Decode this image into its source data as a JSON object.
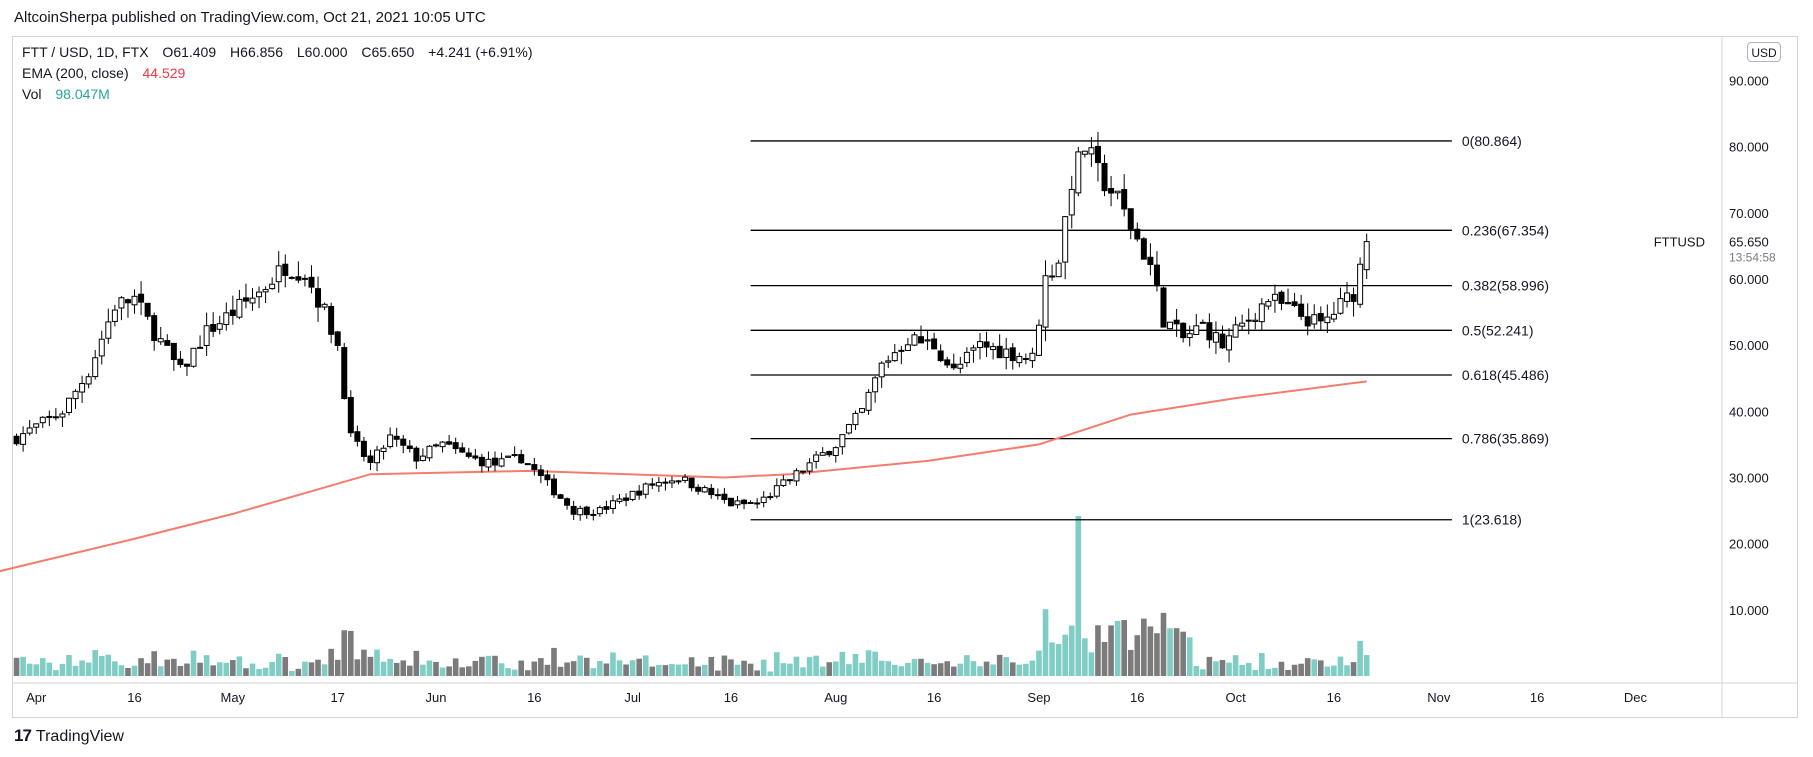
{
  "header": {
    "publisher_line": "AltcoinSherpa published on TradingView.com, Oct 21, 2021 10:05 UTC"
  },
  "legend": {
    "symbol": "FTT / USD, 1D, FTX",
    "open_label": "O",
    "open": "61.409",
    "high_label": "H",
    "high": "66.856",
    "low_label": "L",
    "low": "60.000",
    "close_label": "C",
    "close": "65.650",
    "change": "+4.241 (+6.91%)",
    "ema_label": "EMA (200, close)",
    "ema_value": "44.529",
    "vol_label": "Vol",
    "vol_value": "98.047M"
  },
  "currency_button": "USD",
  "footer": {
    "brand": "TradingView",
    "brand_mark": "17"
  },
  "colors": {
    "up_body": "#ffffff",
    "down_body": "#000000",
    "wick": "#000000",
    "ema": "#f47c6c",
    "vol_up": "#7fcdc5",
    "vol_down": "#7b7b7b",
    "grid_border": "#d1d4dc",
    "fib_line": "#000000"
  },
  "chart_data": {
    "type": "candlestick",
    "symbol_label": "FTTUSD",
    "last_price": "65.650",
    "countdown": "13:54:58",
    "y_axis": {
      "ticks": [
        "90.000",
        "80.000",
        "70.000",
        "60.000",
        "50.000",
        "40.000",
        "30.000",
        "20.000",
        "10.000"
      ],
      "ylim": [
        0,
        97
      ]
    },
    "x_axis": {
      "ticks": [
        "Apr",
        "16",
        "May",
        "17",
        "Jun",
        "16",
        "Jul",
        "16",
        "Aug",
        "16",
        "Sep",
        "16",
        "Oct",
        "16",
        "Nov",
        "16",
        "Dec"
      ]
    },
    "fib_levels": [
      {
        "label": "0(80.864)",
        "value": 80.864
      },
      {
        "label": "0.236(67.354)",
        "value": 67.354
      },
      {
        "label": "0.382(58.996)",
        "value": 58.996
      },
      {
        "label": "0.5(52.241)",
        "value": 52.241
      },
      {
        "label": "0.618(45.486)",
        "value": 45.486
      },
      {
        "label": "0.786(35.869)",
        "value": 35.869
      },
      {
        "label": "1(23.618)",
        "value": 23.618
      }
    ],
    "price_path": [
      [
        "2021-03-29",
        36
      ],
      [
        "2021-04-05",
        40
      ],
      [
        "2021-04-09",
        46
      ],
      [
        "2021-04-13",
        56
      ],
      [
        "2021-04-16",
        57
      ],
      [
        "2021-04-19",
        52
      ],
      [
        "2021-04-23",
        46
      ],
      [
        "2021-04-27",
        52
      ],
      [
        "2021-05-01",
        55
      ],
      [
        "2021-05-05",
        58
      ],
      [
        "2021-05-09",
        62
      ],
      [
        "2021-05-12",
        61
      ],
      [
        "2021-05-15",
        55
      ],
      [
        "2021-05-17",
        50
      ],
      [
        "2021-05-19",
        36
      ],
      [
        "2021-05-22",
        32
      ],
      [
        "2021-05-25",
        36
      ],
      [
        "2021-05-29",
        33
      ],
      [
        "2021-06-02",
        35
      ],
      [
        "2021-06-06",
        33
      ],
      [
        "2021-06-10",
        32
      ],
      [
        "2021-06-14",
        33
      ],
      [
        "2021-06-18",
        29
      ],
      [
        "2021-06-22",
        25
      ],
      [
        "2021-06-26",
        25
      ],
      [
        "2021-06-30",
        27
      ],
      [
        "2021-07-04",
        29
      ],
      [
        "2021-07-08",
        30
      ],
      [
        "2021-07-12",
        28
      ],
      [
        "2021-07-16",
        26
      ],
      [
        "2021-07-20",
        26
      ],
      [
        "2021-07-24",
        29
      ],
      [
        "2021-07-28",
        32
      ],
      [
        "2021-08-01",
        35
      ],
      [
        "2021-08-05",
        40
      ],
      [
        "2021-08-08",
        47
      ],
      [
        "2021-08-12",
        51
      ],
      [
        "2021-08-16",
        50
      ],
      [
        "2021-08-19",
        46
      ],
      [
        "2021-08-23",
        50
      ],
      [
        "2021-08-27",
        49
      ],
      [
        "2021-08-31",
        48
      ],
      [
        "2021-09-02",
        60
      ],
      [
        "2021-09-04",
        63
      ],
      [
        "2021-09-06",
        75
      ],
      [
        "2021-09-08",
        80
      ],
      [
        "2021-09-10",
        76
      ],
      [
        "2021-09-13",
        72
      ],
      [
        "2021-09-16",
        66
      ],
      [
        "2021-09-18",
        62
      ],
      [
        "2021-09-20",
        54
      ],
      [
        "2021-09-23",
        51
      ],
      [
        "2021-09-26",
        53
      ],
      [
        "2021-09-29",
        50
      ],
      [
        "2021-10-02",
        53
      ],
      [
        "2021-10-06",
        57
      ],
      [
        "2021-10-10",
        55
      ],
      [
        "2021-10-14",
        53
      ],
      [
        "2021-10-17",
        56
      ],
      [
        "2021-10-19",
        58
      ],
      [
        "2021-10-21",
        65.65
      ]
    ],
    "ema_200": [
      [
        "2021-03-25",
        15.5
      ],
      [
        "2021-04-15",
        20.5
      ],
      [
        "2021-05-01",
        24.5
      ],
      [
        "2021-05-15",
        28.5
      ],
      [
        "2021-05-22",
        30.5
      ],
      [
        "2021-06-15",
        31
      ],
      [
        "2021-07-15",
        30
      ],
      [
        "2021-07-25",
        30.5
      ],
      [
        "2021-08-15",
        32.5
      ],
      [
        "2021-09-01",
        35
      ],
      [
        "2021-09-15",
        39.5
      ],
      [
        "2021-10-01",
        42
      ],
      [
        "2021-10-21",
        44.529
      ]
    ]
  }
}
